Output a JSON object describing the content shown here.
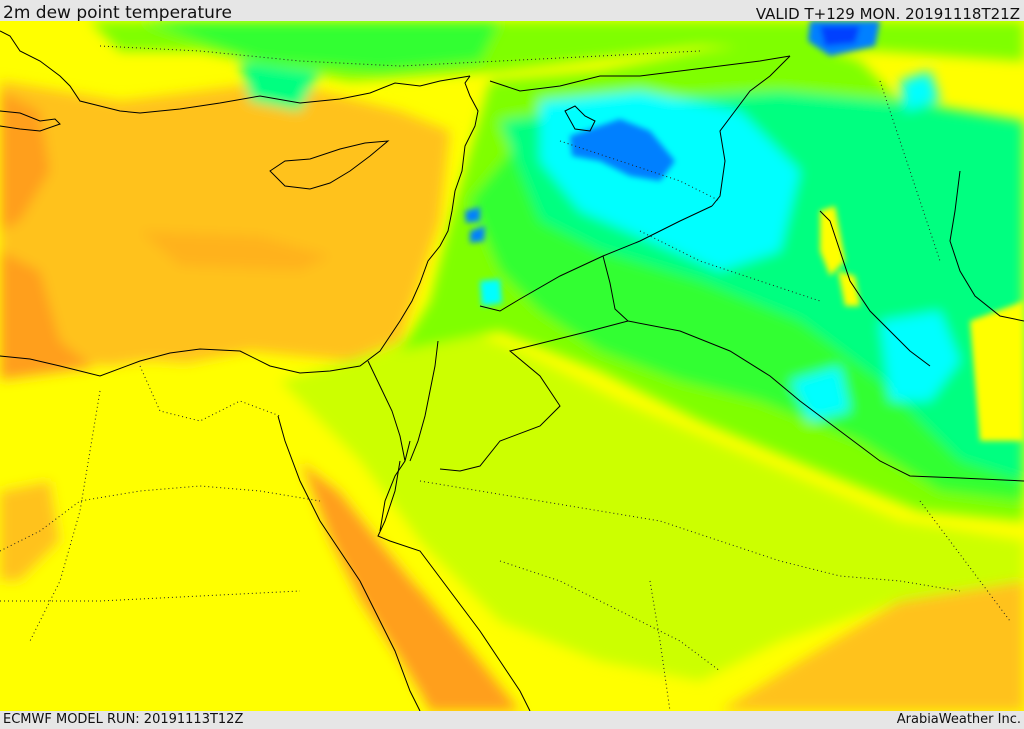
{
  "header": {
    "title": "2m dew point temperature",
    "valid": "VALID T+129 MON. 20191118T21Z"
  },
  "footer": {
    "model_run": "ECMWF MODEL RUN: 20191113T12Z",
    "credit": "ArabiaWeather Inc."
  },
  "colors": {
    "orange": "#ff9f1a",
    "light_orange": "#ffc21f",
    "yellow": "#ffff00",
    "yellow_green": "#ccff00",
    "green": "#7fff00",
    "bright_green": "#33ff33",
    "sea_green": "#00ff80",
    "cyan": "#00ffff",
    "blue": "#0080ff",
    "dark_blue": "#0040ff"
  }
}
